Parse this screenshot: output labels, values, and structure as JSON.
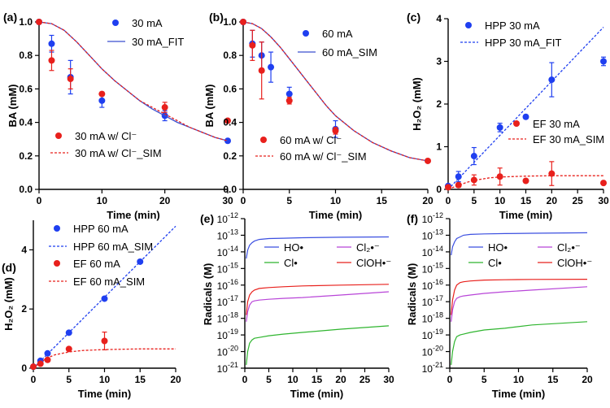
{
  "chart_data": [
    {
      "type": "scatter",
      "panel_label": "(a)",
      "xlabel": "Time (min)",
      "ylabel": "BA (mM)",
      "xlim": [
        0,
        30
      ],
      "ylim": [
        0,
        1.0
      ],
      "xticks": [
        "0",
        "10",
        "20",
        "30"
      ],
      "yticks": [
        "0.0",
        "0.2",
        "0.4",
        "0.6",
        "0.8",
        "1.0"
      ],
      "series": [
        {
          "name": "30 mA",
          "kind": "points",
          "color": "#1f3ff0",
          "x": [
            0,
            2,
            5,
            10,
            20,
            30
          ],
          "y": [
            1.0,
            0.87,
            0.67,
            0.53,
            0.44,
            0.29
          ],
          "err": [
            0,
            0.05,
            0.1,
            0.04,
            0.03,
            0
          ]
        },
        {
          "name": "30 mA_FIT",
          "kind": "line",
          "color": "#3b4fcf",
          "dash": false,
          "x": [
            0,
            2,
            4,
            6,
            8,
            10,
            12,
            14,
            16,
            18,
            20,
            22,
            24,
            26,
            28,
            30
          ],
          "y": [
            1.0,
            0.99,
            0.95,
            0.88,
            0.8,
            0.72,
            0.65,
            0.59,
            0.53,
            0.48,
            0.44,
            0.4,
            0.37,
            0.34,
            0.31,
            0.29
          ]
        },
        {
          "name": "30 mA w/ Cl⁻",
          "kind": "points",
          "color": "#e8201c",
          "x": [
            0,
            2,
            5,
            10,
            20,
            30
          ],
          "y": [
            1.0,
            0.77,
            0.66,
            0.57,
            0.49,
            0.41
          ],
          "err": [
            0,
            0.06,
            0.06,
            0.01,
            0.03,
            0
          ]
        },
        {
          "name": "30 mA w/ Cl⁻_SIM",
          "kind": "line",
          "color": "#e8201c",
          "dash": true,
          "x": [
            0,
            2,
            4,
            6,
            8,
            10,
            12,
            14,
            16,
            18,
            20,
            22,
            24,
            26,
            28,
            30
          ],
          "y": [
            1.0,
            0.99,
            0.95,
            0.88,
            0.8,
            0.72,
            0.65,
            0.59,
            0.53,
            0.49,
            0.45,
            0.41,
            0.37,
            0.34,
            0.31,
            0.29
          ]
        }
      ]
    },
    {
      "type": "scatter",
      "panel_label": "(b)",
      "xlabel": "Time (min)",
      "ylabel": "BA (mM)",
      "xlim": [
        0,
        20
      ],
      "ylim": [
        0,
        1.0
      ],
      "xticks": [
        "0",
        "5",
        "10",
        "15",
        "20"
      ],
      "yticks": [
        "0.0",
        "0.2",
        "0.4",
        "0.6",
        "0.8",
        "1.0"
      ],
      "series": [
        {
          "name": "60 mA",
          "kind": "points",
          "color": "#1f3ff0",
          "x": [
            0,
            1,
            2,
            3,
            5,
            10
          ],
          "y": [
            1.0,
            0.87,
            0.8,
            0.73,
            0.57,
            0.36
          ],
          "err": [
            0,
            0.08,
            0.08,
            0.09,
            0.04,
            0.05
          ]
        },
        {
          "name": "60 mA_SIM",
          "kind": "line",
          "color": "#3b4fcf",
          "dash": false,
          "x": [
            0,
            1,
            2,
            3,
            4,
            5,
            6,
            7,
            8,
            9,
            10,
            12,
            14,
            16,
            18,
            20
          ],
          "y": [
            1.0,
            0.99,
            0.96,
            0.91,
            0.85,
            0.78,
            0.71,
            0.64,
            0.57,
            0.5,
            0.44,
            0.35,
            0.28,
            0.23,
            0.19,
            0.17
          ]
        },
        {
          "name": "60 mA w/ Cl⁻",
          "kind": "points",
          "color": "#e8201c",
          "x": [
            0,
            1,
            2,
            5,
            10,
            20
          ],
          "y": [
            1.0,
            0.86,
            0.71,
            0.53,
            0.35,
            0.17
          ],
          "err": [
            0,
            0.09,
            0.17,
            0.02,
            0.02,
            0
          ]
        },
        {
          "name": "60 mA w/ Cl⁻_SIM",
          "kind": "line",
          "color": "#e8201c",
          "dash": true,
          "x": [
            0,
            1,
            2,
            3,
            4,
            5,
            6,
            7,
            8,
            9,
            10,
            12,
            14,
            16,
            18,
            20
          ],
          "y": [
            1.0,
            0.99,
            0.96,
            0.91,
            0.85,
            0.78,
            0.71,
            0.64,
            0.57,
            0.5,
            0.44,
            0.35,
            0.28,
            0.23,
            0.19,
            0.17
          ]
        }
      ]
    },
    {
      "type": "scatter",
      "panel_label": "(c)",
      "xlabel": "Time (min)",
      "ylabel": "H₂O₂ (mM)",
      "xlim": [
        0,
        30
      ],
      "ylim": [
        0,
        4
      ],
      "xticks": [
        "0",
        "5",
        "10",
        "15",
        "20",
        "25",
        "30"
      ],
      "yticks": [
        "0",
        "1",
        "2",
        "3",
        "4"
      ],
      "series": [
        {
          "name": "HPP 30 mA",
          "kind": "points",
          "color": "#1f3ff0",
          "x": [
            0,
            2,
            5,
            10,
            15,
            20,
            30
          ],
          "y": [
            0.08,
            0.3,
            0.78,
            1.45,
            1.7,
            2.57,
            3.0
          ],
          "err": [
            0,
            0.12,
            0.2,
            0.1,
            0,
            0.4,
            0.1
          ]
        },
        {
          "name": "HPP 30 mA_FIT",
          "kind": "line",
          "color": "#1f3ff0",
          "dash": true,
          "x": [
            0,
            30
          ],
          "y": [
            0,
            3.8
          ]
        },
        {
          "name": "EF 30 mA",
          "kind": "points",
          "color": "#e8201c",
          "x": [
            0,
            2,
            5,
            10,
            15,
            20,
            30
          ],
          "y": [
            0.05,
            0.1,
            0.22,
            0.3,
            0.2,
            0.37,
            0.15
          ],
          "err": [
            0,
            0.05,
            0.12,
            0.2,
            0,
            0.28,
            0
          ]
        },
        {
          "name": "EF 30 mA_SIM",
          "kind": "line",
          "color": "#e8201c",
          "dash": true,
          "x": [
            0,
            2,
            4,
            6,
            8,
            10,
            15,
            20,
            25,
            30
          ],
          "y": [
            0,
            0.1,
            0.18,
            0.23,
            0.27,
            0.29,
            0.31,
            0.32,
            0.32,
            0.32
          ]
        }
      ]
    },
    {
      "type": "scatter",
      "panel_label": "(d)",
      "xlabel": "Time (min)",
      "ylabel": "H₂O₂ (mM)",
      "xlim": [
        0,
        20
      ],
      "ylim": [
        0,
        5
      ],
      "xticks": [
        "0",
        "5",
        "10",
        "15",
        "20"
      ],
      "yticks": [
        "0",
        "2",
        "4"
      ],
      "series": [
        {
          "name": "HPP 60 mA",
          "kind": "points",
          "color": "#1f3ff0",
          "x": [
            0,
            1,
            2,
            5,
            10,
            15
          ],
          "y": [
            0.05,
            0.25,
            0.5,
            1.2,
            2.35,
            3.6
          ],
          "err": [
            0,
            0,
            0,
            0,
            0,
            0
          ]
        },
        {
          "name": "HPP 60 mA_SIM",
          "kind": "line",
          "color": "#1f3ff0",
          "dash": true,
          "x": [
            0,
            20
          ],
          "y": [
            0,
            4.8
          ]
        },
        {
          "name": "EF 60 mA",
          "kind": "points",
          "color": "#e8201c",
          "x": [
            0,
            1,
            2,
            5,
            10
          ],
          "y": [
            0.05,
            0.15,
            0.28,
            0.65,
            0.92
          ],
          "err": [
            0,
            0,
            0,
            0,
            0.3
          ]
        },
        {
          "name": "EF 60 mA_SIM",
          "kind": "line",
          "color": "#e8201c",
          "dash": true,
          "x": [
            0,
            1,
            2,
            3,
            5,
            7,
            10,
            15,
            20
          ],
          "y": [
            0,
            0.2,
            0.35,
            0.45,
            0.55,
            0.6,
            0.63,
            0.65,
            0.65
          ]
        }
      ]
    },
    {
      "type": "line",
      "panel_label": "(e)",
      "xlabel": "Time (min)",
      "ylabel": "Radicals (M)",
      "xlim": [
        0,
        30
      ],
      "ylim_log10": [
        -21,
        -12
      ],
      "xticks": [
        "0",
        "5",
        "10",
        "15",
        "20",
        "25",
        "30"
      ],
      "yticks_exp": [
        "-12",
        "-13",
        "-14",
        "-15",
        "-16",
        "-17",
        "-18",
        "-19",
        "-20",
        "-21"
      ],
      "ytick_base": "10",
      "legend": [
        {
          "label": "HO•",
          "color": "#3b4fe0"
        },
        {
          "label": "Cl•",
          "color": "#2fb52f"
        },
        {
          "label": "ClOH•⁻",
          "color": "#e8201c"
        },
        {
          "label": "Cl₂•⁻",
          "color": "#b845d8"
        }
      ],
      "series": [
        {
          "name": "HO•",
          "color": "#3b4fe0",
          "x": [
            0.3,
            0.6,
            1,
            1.5,
            2,
            3,
            5,
            8,
            12,
            20,
            30
          ],
          "log10_y": [
            -14.4,
            -13.9,
            -13.6,
            -13.45,
            -13.35,
            -13.25,
            -13.2,
            -13.18,
            -13.15,
            -13.12,
            -13.1
          ]
        },
        {
          "name": "ClOH•⁻",
          "color": "#e8201c",
          "x": [
            0.3,
            0.6,
            1,
            1.5,
            2,
            3,
            5,
            8,
            12,
            20,
            30
          ],
          "log10_y": [
            -17.8,
            -17.0,
            -16.6,
            -16.4,
            -16.3,
            -16.2,
            -16.15,
            -16.1,
            -16.05,
            -16.0,
            -15.95
          ]
        },
        {
          "name": "Cl₂•⁻",
          "color": "#b845d8",
          "x": [
            0.3,
            0.6,
            1,
            1.5,
            2,
            3,
            5,
            8,
            12,
            20,
            30
          ],
          "log10_y": [
            -18.2,
            -17.6,
            -17.2,
            -17.0,
            -16.95,
            -16.9,
            -16.85,
            -16.8,
            -16.75,
            -16.6,
            -16.4
          ]
        },
        {
          "name": "Cl•",
          "color": "#2fb52f",
          "x": [
            0.3,
            0.6,
            1,
            1.5,
            2,
            3,
            5,
            8,
            12,
            20,
            30
          ],
          "log10_y": [
            -20.8,
            -20.0,
            -19.5,
            -19.3,
            -19.2,
            -19.15,
            -19.05,
            -18.95,
            -18.85,
            -18.65,
            -18.45
          ]
        }
      ]
    },
    {
      "type": "line",
      "panel_label": "(f)",
      "xlabel": "Time (min)",
      "ylabel": "Radicals (M)",
      "xlim": [
        0,
        20
      ],
      "ylim_log10": [
        -21,
        -12
      ],
      "xticks": [
        "0",
        "5",
        "10",
        "15",
        "20"
      ],
      "yticks_exp": [
        "-12",
        "-13",
        "-14",
        "-15",
        "-16",
        "-17",
        "-18",
        "-19",
        "-20",
        "-21"
      ],
      "ytick_base": "10",
      "legend": [
        {
          "label": "HO•",
          "color": "#3b4fe0"
        },
        {
          "label": "Cl•",
          "color": "#2fb52f"
        },
        {
          "label": "ClOH•⁻",
          "color": "#e8201c"
        },
        {
          "label": "Cl₂•⁻",
          "color": "#b845d8"
        }
      ],
      "series": [
        {
          "name": "HO•",
          "color": "#3b4fe0",
          "x": [
            0.2,
            0.4,
            0.7,
            1,
            1.5,
            2,
            3,
            5,
            8,
            12,
            20
          ],
          "log10_y": [
            -14.2,
            -13.7,
            -13.4,
            -13.2,
            -13.1,
            -13.0,
            -12.95,
            -12.92,
            -12.9,
            -12.88,
            -12.85
          ]
        },
        {
          "name": "ClOH•⁻",
          "color": "#e8201c",
          "x": [
            0.2,
            0.4,
            0.7,
            1,
            1.5,
            2,
            3,
            5,
            8,
            12,
            20
          ],
          "log10_y": [
            -17.8,
            -16.9,
            -16.3,
            -16.0,
            -15.85,
            -15.8,
            -15.75,
            -15.7,
            -15.68,
            -15.66,
            -15.65
          ]
        },
        {
          "name": "Cl₂•⁻",
          "color": "#b845d8",
          "x": [
            0.2,
            0.4,
            0.7,
            1,
            1.5,
            2,
            3,
            5,
            8,
            12,
            20
          ],
          "log10_y": [
            -18.2,
            -17.5,
            -17.0,
            -16.8,
            -16.7,
            -16.65,
            -16.6,
            -16.5,
            -16.4,
            -16.3,
            -16.1
          ]
        },
        {
          "name": "Cl•",
          "color": "#2fb52f",
          "x": [
            0.2,
            0.4,
            0.7,
            1,
            1.5,
            2,
            3,
            5,
            8,
            12,
            20
          ],
          "log10_y": [
            -20.8,
            -20.0,
            -19.4,
            -19.1,
            -19.0,
            -18.95,
            -18.85,
            -18.7,
            -18.6,
            -18.4,
            -18.2
          ]
        }
      ]
    }
  ]
}
